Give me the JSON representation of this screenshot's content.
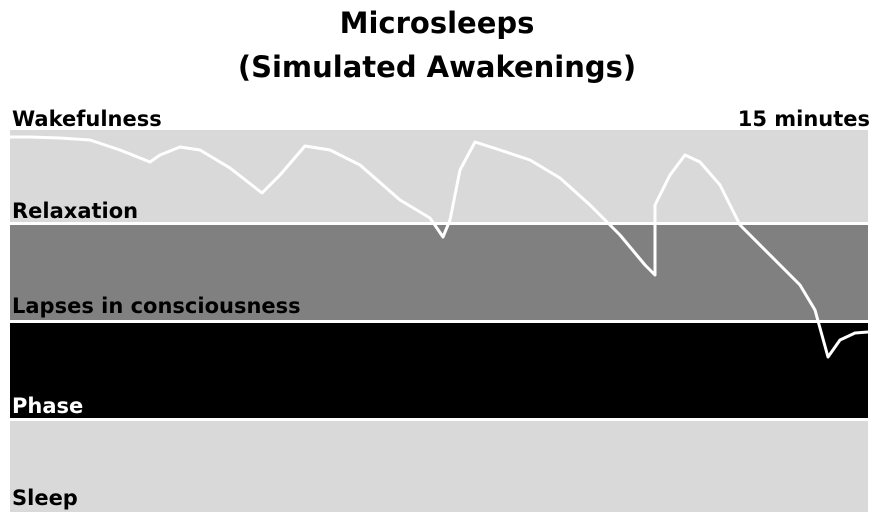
{
  "title": [
    "Microsleeps",
    "(Simulated Awakenings)"
  ],
  "corner_labels": {
    "left": "Wakefulness",
    "right": "15 minutes"
  },
  "zones": [
    "Relaxation",
    "Lapses in consciousness",
    "Phase",
    "Sleep"
  ]
}
